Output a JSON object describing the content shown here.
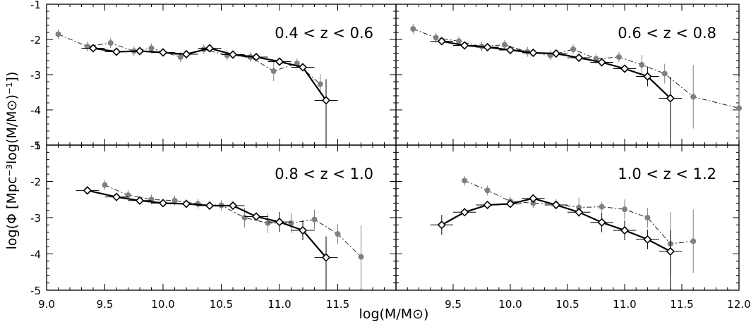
{
  "figure": {
    "ylabel": "log(Φ [Mpc⁻³log(M/M⊙)⁻¹])",
    "xlabel": "log(M/M⊙)"
  },
  "colors": {
    "primary": "#000000",
    "secondary": "#808080"
  },
  "chart_data": [
    {
      "type": "line",
      "panel": "top-left",
      "annotation": "0.4 < z < 0.6",
      "xlim": [
        9.0,
        12.0
      ],
      "ylim": [
        -5,
        -1
      ],
      "xticks": [],
      "yticks": [
        "-5",
        "-4",
        "-3",
        "-2",
        "-1"
      ],
      "series": [
        {
          "style": "solid black with open diamonds",
          "x": [
            9.4,
            9.6,
            9.8,
            10.0,
            10.2,
            10.4,
            10.6,
            10.8,
            11.0,
            11.2,
            11.4
          ],
          "y": [
            -2.25,
            -2.35,
            -2.33,
            -2.37,
            -2.42,
            -2.25,
            -2.43,
            -2.5,
            -2.63,
            -2.79,
            -3.73
          ]
        },
        {
          "style": "dash-dot gray with filled circles",
          "x": [
            9.1,
            9.35,
            9.55,
            9.75,
            9.9,
            10.15,
            10.35,
            10.55,
            10.75,
            10.95,
            11.15,
            11.35
          ],
          "y": [
            -1.85,
            -2.2,
            -2.1,
            -2.33,
            -2.25,
            -2.5,
            -2.28,
            -2.45,
            -2.5,
            -2.9,
            -2.68,
            -3.27
          ]
        }
      ]
    },
    {
      "type": "line",
      "panel": "top-right",
      "annotation": "0.6 < z < 0.8",
      "xlim": [
        9.0,
        12.0
      ],
      "ylim": [
        -5,
        -1
      ],
      "xticks": [],
      "yticks": [],
      "series": [
        {
          "style": "solid black with open diamonds",
          "x": [
            9.4,
            9.6,
            9.8,
            10.0,
            10.2,
            10.4,
            10.6,
            10.8,
            11.0,
            11.2,
            11.4
          ],
          "y": [
            -2.05,
            -2.17,
            -2.22,
            -2.3,
            -2.38,
            -2.4,
            -2.52,
            -2.65,
            -2.83,
            -3.05,
            -3.67
          ]
        },
        {
          "style": "dash-dot gray with filled circles",
          "x": [
            9.15,
            9.35,
            9.55,
            9.75,
            9.95,
            10.15,
            10.35,
            10.55,
            10.75,
            10.95,
            11.15,
            11.35,
            11.6,
            12.0
          ],
          "y": [
            -1.7,
            -1.95,
            -2.05,
            -2.2,
            -2.15,
            -2.35,
            -2.45,
            -2.28,
            -2.55,
            -2.5,
            -2.72,
            -2.97,
            -3.63,
            -3.95
          ]
        }
      ]
    },
    {
      "type": "line",
      "panel": "bottom-left",
      "annotation": "0.8 < z < 1.0",
      "xlim": [
        9.0,
        12.0
      ],
      "ylim": [
        -5,
        -1
      ],
      "xticks": [
        "9.0",
        "9.5",
        "10.0",
        "10.5",
        "11.0",
        "11.5"
      ],
      "yticks": [
        "-5",
        "-4",
        "-3",
        "-2",
        "-1"
      ],
      "series": [
        {
          "style": "solid black with open diamonds",
          "x": [
            9.35,
            9.6,
            9.8,
            10.0,
            10.2,
            10.4,
            10.6,
            10.8,
            11.0,
            11.2,
            11.4
          ],
          "y": [
            -2.25,
            -2.43,
            -2.53,
            -2.6,
            -2.62,
            -2.67,
            -2.67,
            -2.97,
            -3.12,
            -3.35,
            -4.1
          ]
        },
        {
          "style": "dash-dot gray with filled circles",
          "x": [
            9.5,
            9.7,
            9.9,
            10.1,
            10.3,
            10.5,
            10.7,
            10.9,
            11.1,
            11.3,
            11.5,
            11.7
          ],
          "y": [
            -2.1,
            -2.38,
            -2.5,
            -2.53,
            -2.62,
            -2.66,
            -3.0,
            -3.15,
            -3.15,
            -3.05,
            -3.45,
            -4.08
          ]
        }
      ]
    },
    {
      "type": "line",
      "panel": "bottom-right",
      "annotation": "1.0 < z < 1.2",
      "xlim": [
        9.0,
        12.0
      ],
      "ylim": [
        -5,
        -1
      ],
      "xticks": [
        "9.5",
        "10.0",
        "10.5",
        "11.0",
        "11.5",
        "12.0"
      ],
      "yticks": [],
      "series": [
        {
          "style": "solid black with open diamonds",
          "x": [
            9.4,
            9.6,
            9.8,
            10.0,
            10.2,
            10.4,
            10.6,
            10.8,
            11.0,
            11.2,
            11.4
          ],
          "y": [
            -3.2,
            -2.85,
            -2.65,
            -2.62,
            -2.47,
            -2.65,
            -2.85,
            -3.13,
            -3.35,
            -3.6,
            -3.93
          ]
        },
        {
          "style": "dash-dot gray with filled circles",
          "x": [
            9.6,
            9.8,
            10.0,
            10.2,
            10.4,
            10.6,
            10.8,
            11.0,
            11.2,
            11.4,
            11.6
          ],
          "y": [
            -1.98,
            -2.25,
            -2.55,
            -2.6,
            -2.62,
            -2.72,
            -2.7,
            -2.77,
            -3.0,
            -3.72,
            -3.65
          ]
        }
      ]
    }
  ]
}
